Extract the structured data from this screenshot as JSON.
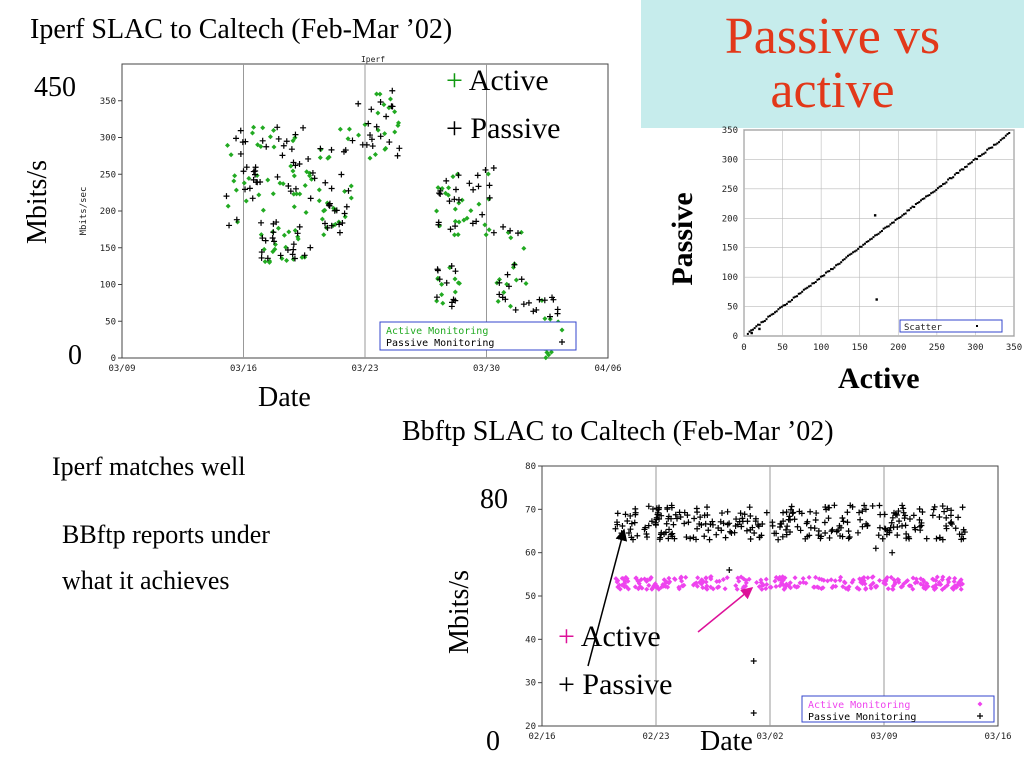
{
  "slide": {
    "title_line1": "Passive vs",
    "title_line2": "active",
    "note1": "Iperf matches well",
    "note2_line1": "BBftp reports under",
    "note2_line2": "what it achieves"
  },
  "charts": {
    "iperf": {
      "heading": "Iperf SLAC to Caltech (Feb-Mar ’02)",
      "overlay_y_top": "450",
      "overlay_y_bottom": "0",
      "overlay_ylabel": "Mbits/s",
      "overlay_xlabel": "Date",
      "legend_active_mark": "+",
      "legend_active_label": "Active",
      "legend_passive_mark": "+",
      "legend_passive_label": "Passive"
    },
    "scatter": {
      "overlay_ylabel": "Passive",
      "overlay_xlabel": "Active"
    },
    "bbftp": {
      "heading": "Bbftp SLAC to Caltech (Feb-Mar ’02)",
      "overlay_y_top": "80",
      "overlay_y_bottom": "0",
      "overlay_ylabel": "Mbits/s",
      "overlay_xlabel": "Date",
      "legend_active_mark": "+",
      "legend_active_label": "Active",
      "legend_passive_mark": "+",
      "legend_passive_label": "Passive"
    }
  },
  "chart_data": [
    {
      "id": "iperf",
      "type": "scatter",
      "title": "Iperf",
      "ylabel": "Mbits/sec",
      "xlabel": "",
      "x_ticks": [
        "03/09",
        "03/16",
        "03/23",
        "03/30",
        "04/06"
      ],
      "x_range_days": [
        0,
        28
      ],
      "ylim": [
        0,
        400
      ],
      "y_ticks": [
        0,
        50,
        100,
        150,
        200,
        250,
        300,
        350
      ],
      "legend_box": "bottom-right",
      "series": [
        {
          "name": "Active Monitoring",
          "color": "#22aa22",
          "marker": "diamond",
          "clusters": [
            {
              "x_from": 6.0,
              "x_to": 7.0,
              "y_mid": 240,
              "y_spread": 65
            },
            {
              "x_from": 7.0,
              "x_to": 13.5,
              "y_mid": 255,
              "y_spread": 60
            },
            {
              "x_from": 8.0,
              "x_to": 11.0,
              "y_mid": 155,
              "y_spread": 25
            },
            {
              "x_from": 11.5,
              "x_to": 13.0,
              "y_mid": 185,
              "y_spread": 20
            },
            {
              "x_from": 13.5,
              "x_to": 16.0,
              "y_mid": 315,
              "y_spread": 45
            },
            {
              "x_from": 18.0,
              "x_to": 21.5,
              "y_mid": 210,
              "y_spread": 45
            },
            {
              "x_from": 18.0,
              "x_to": 19.5,
              "y_mid": 95,
              "y_spread": 30
            },
            {
              "x_from": 21.5,
              "x_to": 23.5,
              "y_mid": 120,
              "y_spread": 60
            },
            {
              "x_from": 23.5,
              "x_to": 25.5,
              "y_mid": 40,
              "y_spread": 40
            }
          ]
        },
        {
          "name": "Passive Monitoring",
          "color": "#000000",
          "marker": "plus",
          "clusters": [
            {
              "x_from": 6.0,
              "x_to": 7.0,
              "y_mid": 245,
              "y_spread": 65
            },
            {
              "x_from": 7.0,
              "x_to": 13.5,
              "y_mid": 260,
              "y_spread": 60
            },
            {
              "x_from": 8.0,
              "x_to": 11.0,
              "y_mid": 160,
              "y_spread": 25
            },
            {
              "x_from": 11.5,
              "x_to": 13.0,
              "y_mid": 190,
              "y_spread": 20
            },
            {
              "x_from": 13.5,
              "x_to": 16.0,
              "y_mid": 320,
              "y_spread": 45
            },
            {
              "x_from": 18.0,
              "x_to": 21.5,
              "y_mid": 215,
              "y_spread": 45
            },
            {
              "x_from": 18.0,
              "x_to": 19.5,
              "y_mid": 100,
              "y_spread": 30
            },
            {
              "x_from": 21.5,
              "x_to": 23.5,
              "y_mid": 125,
              "y_spread": 60
            },
            {
              "x_from": 23.5,
              "x_to": 25.5,
              "y_mid": 45,
              "y_spread": 40
            }
          ]
        }
      ]
    },
    {
      "id": "scatter",
      "type": "scatter",
      "title": "",
      "ylabel": "Passive",
      "xlabel": "Active",
      "xlim": [
        0,
        350
      ],
      "ylim": [
        0,
        350
      ],
      "x_ticks": [
        0,
        50,
        100,
        150,
        200,
        250,
        300,
        350
      ],
      "y_ticks": [
        0,
        50,
        100,
        150,
        200,
        250,
        300,
        350
      ],
      "legend_box": "bottom-right",
      "series": [
        {
          "name": "Scatter",
          "color": "#000000",
          "marker": "dot",
          "line_fit": {
            "x_from": 5,
            "x_to": 345,
            "slope": 1.0
          },
          "outliers": [
            [
              170,
              205
            ],
            [
              172,
              62
            ],
            [
              20,
              12
            ],
            [
              10,
              5
            ]
          ]
        }
      ]
    },
    {
      "id": "bbftp",
      "type": "scatter",
      "title": "",
      "ylabel": "",
      "xlabel": "",
      "x_ticks": [
        "02/16",
        "02/23",
        "03/02",
        "03/09",
        "03/16"
      ],
      "x_range_days": [
        0,
        28
      ],
      "ylim": [
        20,
        80
      ],
      "y_ticks": [
        20,
        30,
        40,
        50,
        60,
        70,
        80
      ],
      "legend_box": "bottom-right",
      "series": [
        {
          "name": "Active Monitoring",
          "color": "#ee44ee",
          "marker": "diamond",
          "clusters": [
            {
              "x_from": 4.5,
              "x_to": 26.0,
              "y_mid": 53,
              "y_spread": 1.5
            }
          ]
        },
        {
          "name": "Passive Monitoring",
          "color": "#000000",
          "marker": "plus",
          "clusters": [
            {
              "x_from": 4.5,
              "x_to": 26.0,
              "y_mid": 67,
              "y_spread": 4
            }
          ],
          "outliers": [
            [
              11.5,
              56
            ],
            [
              13.0,
              35
            ],
            [
              13.0,
              23
            ],
            [
              17.0,
              65
            ],
            [
              14.5,
              63
            ],
            [
              20.5,
              61
            ],
            [
              21.5,
              60
            ]
          ]
        }
      ]
    }
  ]
}
